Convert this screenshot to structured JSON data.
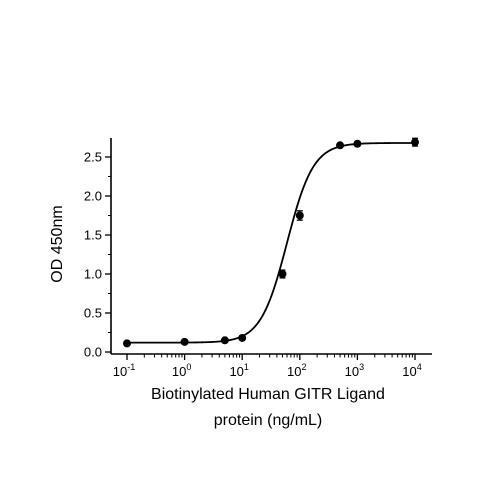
{
  "chart_data": {
    "type": "scatter",
    "title": "",
    "xlabel_line1": "Biotinylated Human GITR Ligand",
    "xlabel_line2": "protein (ng/mL)",
    "ylabel": "OD 450nm",
    "xscale": "log",
    "xlim": [
      0.1,
      10000
    ],
    "ylim": [
      0,
      2.7
    ],
    "x_ticks": [
      {
        "value": 0.1,
        "base": "10",
        "exp": "-1"
      },
      {
        "value": 1,
        "base": "10",
        "exp": "0"
      },
      {
        "value": 10,
        "base": "10",
        "exp": "1"
      },
      {
        "value": 100,
        "base": "10",
        "exp": "2"
      },
      {
        "value": 1000,
        "base": "10",
        "exp": "3"
      },
      {
        "value": 10000,
        "base": "10",
        "exp": "4"
      }
    ],
    "y_ticks": [
      {
        "value": 0.0,
        "label": "0.0"
      },
      {
        "value": 0.5,
        "label": "0.5"
      },
      {
        "value": 1.0,
        "label": "1.0"
      },
      {
        "value": 1.5,
        "label": "1.5"
      },
      {
        "value": 2.0,
        "label": "2.0"
      },
      {
        "value": 2.5,
        "label": "2.5"
      }
    ],
    "grid": false,
    "legend": "none",
    "points": [
      {
        "x": 0.1,
        "y": 0.11,
        "err": 0.0
      },
      {
        "x": 1.0,
        "y": 0.13,
        "err": 0.0
      },
      {
        "x": 5.0,
        "y": 0.15,
        "err": 0.01
      },
      {
        "x": 10.0,
        "y": 0.18,
        "err": 0.01
      },
      {
        "x": 50.0,
        "y": 1.0,
        "err": 0.05
      },
      {
        "x": 100.0,
        "y": 1.75,
        "err": 0.06
      },
      {
        "x": 500.0,
        "y": 2.65,
        "err": 0.02
      },
      {
        "x": 1000.0,
        "y": 2.67,
        "err": 0.02
      },
      {
        "x": 10000.0,
        "y": 2.69,
        "err": 0.05
      }
    ],
    "fit": {
      "model": "4PL",
      "bottom": 0.12,
      "top": 2.68,
      "ec50": 60,
      "hill": 1.9
    },
    "color": "#000000"
  }
}
